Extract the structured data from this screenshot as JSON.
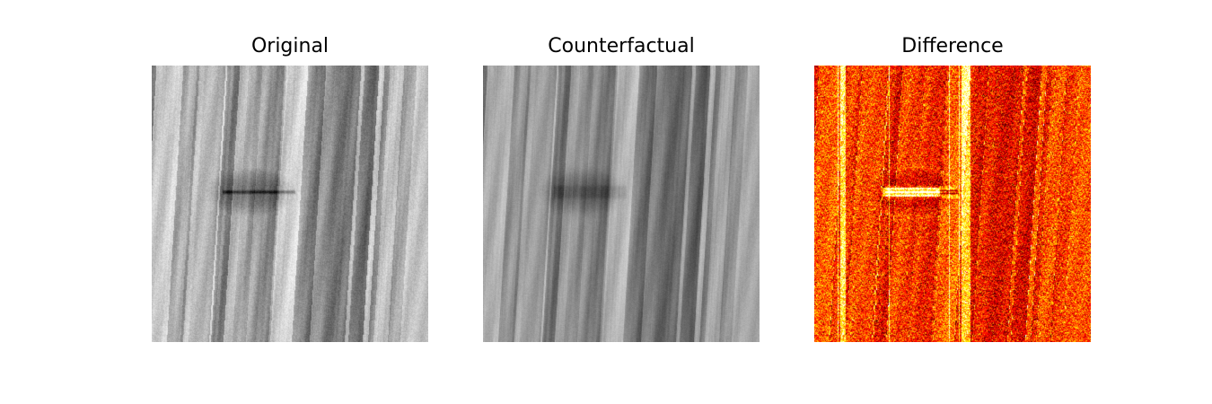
{
  "panels": [
    {
      "title": "Original",
      "kind": "grayscale-texture"
    },
    {
      "title": "Counterfactual",
      "kind": "grayscale-texture-smoothed"
    },
    {
      "title": "Difference",
      "kind": "heatmap",
      "colormap": "hot"
    }
  ],
  "colors": {
    "background": "#ffffff",
    "title_text": "#000000",
    "heat_low": "#000000",
    "heat_mid": "#cc1a00",
    "heat_high": "#ffff66"
  }
}
